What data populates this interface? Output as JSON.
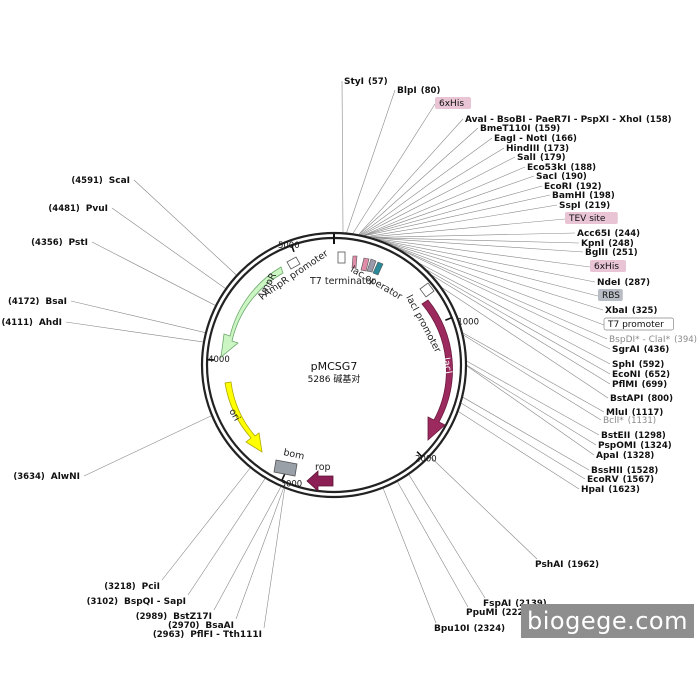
{
  "plasmid": {
    "name": "pMCSG7",
    "size_label": "5286 碱基对"
  },
  "watermark": "biogege.com",
  "ticks": [
    "1000",
    "2000",
    "3000",
    "4000",
    "5000"
  ],
  "sites_top": [
    {
      "name": "StyI",
      "pos": "(57)",
      "style": "bold"
    },
    {
      "name": "BlpI",
      "pos": "(80)",
      "style": "bold"
    },
    {
      "name": "6xHis",
      "pos": "",
      "style": "tag"
    },
    {
      "name": "AvaI - BsoBI - PaeR7I - PspXI - XhoI",
      "pos": "(158)",
      "style": "bold"
    },
    {
      "name": "BmeT110I",
      "pos": "(159)",
      "style": "bold"
    },
    {
      "name": "EagI - NotI",
      "pos": "(166)",
      "style": "bold"
    },
    {
      "name": "HindIII",
      "pos": "(173)",
      "style": "bold"
    },
    {
      "name": "SalI",
      "pos": "(179)",
      "style": "bold"
    },
    {
      "name": "Eco53kI",
      "pos": "(188)",
      "style": "bold"
    },
    {
      "name": "SacI",
      "pos": "(190)",
      "style": "bold"
    },
    {
      "name": "EcoRI",
      "pos": "(192)",
      "style": "bold"
    },
    {
      "name": "BamHI",
      "pos": "(198)",
      "style": "bold"
    },
    {
      "name": "SspI",
      "pos": "(219)",
      "style": "bold"
    },
    {
      "name": "TEV site",
      "pos": "",
      "style": "tag"
    },
    {
      "name": "Acc65I",
      "pos": "(244)",
      "style": "bold"
    },
    {
      "name": "KpnI",
      "pos": "(248)",
      "style": "bold"
    },
    {
      "name": "BglII",
      "pos": "(251)",
      "style": "bold"
    },
    {
      "name": "6xHis",
      "pos": "",
      "style": "tag"
    },
    {
      "name": "NdeI",
      "pos": "(287)",
      "style": "bold"
    },
    {
      "name": "RBS",
      "pos": "",
      "style": "graytag"
    },
    {
      "name": "XbaI",
      "pos": "(325)",
      "style": "bold"
    },
    {
      "name": "T7 promoter",
      "pos": "",
      "style": "outline"
    },
    {
      "name": "BspDI* - ClaI*",
      "pos": "(394)",
      "style": "grey"
    },
    {
      "name": "SgrAI",
      "pos": "(436)",
      "style": "bold"
    },
    {
      "name": "SphI",
      "pos": "(592)",
      "style": "bold"
    },
    {
      "name": "EcoNI",
      "pos": "(652)",
      "style": "bold"
    },
    {
      "name": "PflMI",
      "pos": "(699)",
      "style": "bold"
    },
    {
      "name": "BstAPI",
      "pos": "(800)",
      "style": "bold"
    },
    {
      "name": "MluI",
      "pos": "(1117)",
      "style": "bold"
    },
    {
      "name": "BclI*",
      "pos": "(1131)",
      "style": "grey"
    },
    {
      "name": "BstEII",
      "pos": "(1298)",
      "style": "bold"
    },
    {
      "name": "PspOMI",
      "pos": "(1324)",
      "style": "bold"
    },
    {
      "name": "ApaI",
      "pos": "(1328)",
      "style": "bold"
    },
    {
      "name": "BssHII",
      "pos": "(1528)",
      "style": "bold"
    },
    {
      "name": "EcoRV",
      "pos": "(1567)",
      "style": "bold"
    },
    {
      "name": "HpaI",
      "pos": "(1623)",
      "style": "bold"
    }
  ],
  "sites_bottom": [
    {
      "name": "PshAI",
      "pos": "(1962)"
    },
    {
      "name": "FspAI",
      "pos": "(2139)"
    },
    {
      "name": "PpuMI",
      "pos": "(2224)"
    },
    {
      "name": "Bpu10I",
      "pos": "(2324)"
    }
  ],
  "sites_left": [
    {
      "name": "ScaI",
      "pos": "(4591)"
    },
    {
      "name": "PvuI",
      "pos": "(4481)"
    },
    {
      "name": "PstI",
      "pos": "(4356)"
    },
    {
      "name": "BsaI",
      "pos": "(4172)"
    },
    {
      "name": "AhdI",
      "pos": "(4111)"
    },
    {
      "name": "AlwNI",
      "pos": "(3634)"
    },
    {
      "name": "PciI",
      "pos": "(3218)"
    },
    {
      "name": "BspQI - SapI",
      "pos": "(3102)"
    },
    {
      "name": "BstZ17I",
      "pos": "(2989)"
    },
    {
      "name": "BsaAI",
      "pos": "(2970)"
    },
    {
      "name": "PflFI - Tth111I",
      "pos": "(2963)"
    }
  ],
  "features": {
    "ampr": "AmpR",
    "ampr_promoter": "AmpR promoter",
    "t7_terminator": "T7 terminator",
    "lac_operator": "lac operator",
    "laci_promoter": "lacI promoter",
    "laci": "lacI",
    "ori": "ori",
    "bom": "bom",
    "rop": "rop"
  },
  "colors": {
    "ampr": "#ccf5c4",
    "ori": "#ffff00",
    "laci": "#9c2a5e",
    "rop": "#8c2054",
    "bom": "#9aa0a8",
    "tag_pink": "#e8c4d4",
    "tag_gray": "#b8bcc4"
  }
}
